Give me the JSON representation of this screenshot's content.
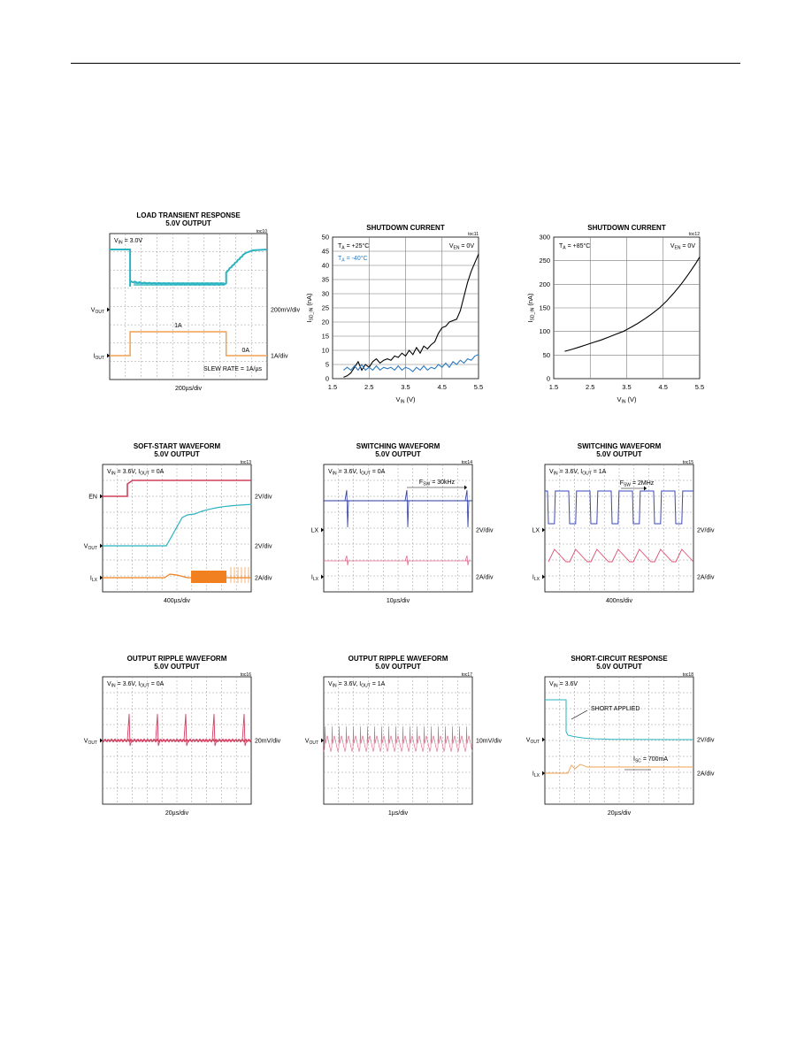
{
  "charts": [
    {
      "id": "c1",
      "kind": "scope",
      "title": [
        "LOAD TRANSIENT RESPONSE",
        "5.0V OUTPUT"
      ],
      "toc": "toc10",
      "condition": [
        [
          "V",
          "IN",
          " = 3.0V"
        ]
      ],
      "left_labels": [
        {
          "parts": [
            [
              "V",
              "OUT",
              ""
            ]
          ]
        },
        {
          "parts": [
            [
              "I",
              "OUT",
              ""
            ]
          ]
        }
      ],
      "right_labels": [
        "200mV/div",
        "1A/div"
      ],
      "annotations": [
        "1A",
        "0A",
        "SLEW RATE = 1A/µs"
      ],
      "time_div": "200µs/div",
      "colors": {
        "vout": "#2bb3c0",
        "iout": "#f0a050"
      }
    },
    {
      "id": "c2",
      "kind": "xy",
      "title": [
        "SHUTDOWN CURRENT"
      ],
      "toc": "toc11",
      "xlabel": [
        [
          "V",
          "IN",
          " (V)"
        ]
      ],
      "ylabel": [
        [
          "I",
          "SD_IN",
          " (nA)"
        ]
      ],
      "legend": [
        {
          "parts": [
            [
              "T",
              "A",
              " = +25°C"
            ]
          ],
          "color": "#000000"
        },
        {
          "parts": [
            [
              "T",
              "A",
              " = -40°C"
            ]
          ],
          "color": "#2a7ac0"
        }
      ],
      "corner_label": [
        [
          "V",
          "EN",
          " = 0V"
        ]
      ],
      "chart_data": {
        "type": "line",
        "xlim": [
          1.5,
          5.5
        ],
        "ylim": [
          0,
          50
        ],
        "x_ticks": [
          1.5,
          2.5,
          3.5,
          4.5,
          5.5
        ],
        "y_ticks": [
          0,
          5,
          10,
          15,
          20,
          25,
          30,
          35,
          40,
          45,
          50
        ],
        "x_tick_labels": [
          "1.5",
          "2.5",
          "3.5",
          "4.5",
          "5.5"
        ],
        "y_tick_labels": [
          "0",
          "5",
          "10",
          "15",
          "20",
          "25",
          "30",
          "35",
          "40",
          "45",
          "50"
        ],
        "series": [
          {
            "name": "TA = +25°C",
            "color": "#000000",
            "x": [
              1.8,
              1.9,
              2.0,
              2.1,
              2.2,
              2.3,
              2.4,
              2.5,
              2.6,
              2.7,
              2.8,
              2.9,
              3.0,
              3.1,
              3.2,
              3.3,
              3.4,
              3.5,
              3.6,
              3.7,
              3.8,
              3.9,
              4.0,
              4.1,
              4.2,
              4.3,
              4.4,
              4.5,
              4.6,
              4.7,
              4.8,
              4.9,
              5.0,
              5.1,
              5.2,
              5.3,
              5.4,
              5.5
            ],
            "y": [
              0.5,
              1.0,
              2.0,
              4.0,
              6.0,
              3.0,
              5.0,
              4.0,
              6.0,
              7.0,
              5.5,
              6.5,
              7.0,
              6.5,
              8.0,
              7.5,
              9.0,
              8.0,
              10.0,
              8.5,
              11.0,
              9.0,
              11.5,
              10.5,
              12.0,
              13.0,
              16.0,
              18.0,
              18.5,
              20.0,
              20.5,
              21.0,
              24.0,
              29.0,
              34.0,
              38.0,
              41.0,
              44.0
            ]
          },
          {
            "name": "TA = -40°C",
            "color": "#2a7ac0",
            "x": [
              1.8,
              1.9,
              2.0,
              2.1,
              2.2,
              2.3,
              2.4,
              2.5,
              2.6,
              2.7,
              2.8,
              2.9,
              3.0,
              3.1,
              3.2,
              3.3,
              3.4,
              3.5,
              3.6,
              3.7,
              3.8,
              3.9,
              4.0,
              4.1,
              4.2,
              4.3,
              4.4,
              4.5,
              4.6,
              4.7,
              4.8,
              4.9,
              5.0,
              5.1,
              5.2,
              5.3,
              5.4,
              5.5
            ],
            "y": [
              3.0,
              4.0,
              3.0,
              4.5,
              3.0,
              5.0,
              3.0,
              4.0,
              3.0,
              4.5,
              3.0,
              4.0,
              3.5,
              4.0,
              3.0,
              4.5,
              3.0,
              4.0,
              3.5,
              2.5,
              4.0,
              3.0,
              4.5,
              3.0,
              4.0,
              3.5,
              5.0,
              4.0,
              5.5,
              4.0,
              6.0,
              5.0,
              6.5,
              5.5,
              7.0,
              6.5,
              8.0,
              8.5
            ]
          }
        ]
      }
    },
    {
      "id": "c3",
      "kind": "xy",
      "title": [
        "SHUTDOWN CURRENT"
      ],
      "toc": "toc12",
      "xlabel": [
        [
          "V",
          "IN",
          " (V)"
        ]
      ],
      "ylabel": [
        [
          "I",
          "SD_IN",
          " (nA)"
        ]
      ],
      "legend": [
        {
          "parts": [
            [
              "T",
              "A",
              " = +85°C"
            ]
          ],
          "color": "#000000"
        }
      ],
      "corner_label": [
        [
          "V",
          "EN",
          " = 0V"
        ]
      ],
      "chart_data": {
        "type": "line",
        "xlim": [
          1.5,
          5.5
        ],
        "ylim": [
          0,
          300
        ],
        "x_ticks": [
          1.5,
          2.5,
          3.5,
          4.5,
          5.5
        ],
        "y_ticks": [
          0,
          50,
          100,
          150,
          200,
          250,
          300
        ],
        "x_tick_labels": [
          "1.5",
          "2.5",
          "3.5",
          "4.5",
          "5.5"
        ],
        "y_tick_labels": [
          "0",
          "50",
          "100",
          "150",
          "200",
          "250",
          "300"
        ],
        "series": [
          {
            "name": "TA = +85°C",
            "color": "#000000",
            "x": [
              1.8,
              2.0,
              2.2,
              2.4,
              2.6,
              2.8,
              3.0,
              3.2,
              3.4,
              3.6,
              3.8,
              4.0,
              4.2,
              4.4,
              4.6,
              4.8,
              5.0,
              5.2,
              5.4,
              5.5
            ],
            "y": [
              58,
              62,
              67,
              72,
              77,
              82,
              88,
              94,
              100,
              108,
              117,
              127,
              138,
              150,
              165,
              182,
              201,
              222,
              245,
              258
            ]
          }
        ]
      }
    },
    {
      "id": "c4",
      "kind": "scope",
      "title": [
        "SOFT-START WAVEFORM",
        "5.0V OUTPUT"
      ],
      "toc": "toc13",
      "condition": [
        [
          "V",
          "IN",
          " = 3.6V, "
        ],
        [
          "I",
          "OUT",
          " = 0A"
        ]
      ],
      "left_labels": [
        {
          "parts": [
            [
              "EN",
              "",
              ""
            ]
          ]
        },
        {
          "parts": [
            [
              "V",
              "OUT",
              ""
            ]
          ]
        },
        {
          "parts": [
            [
              "I",
              "LX",
              ""
            ]
          ]
        }
      ],
      "right_labels": [
        "2V/div",
        "2V/div",
        "2A/div"
      ],
      "annotations": [],
      "time_div": "400µs/div",
      "colors": {
        "en": "#d0405a",
        "vout": "#2bb3c0",
        "ilx": "#f08020"
      }
    },
    {
      "id": "c5",
      "kind": "scope",
      "title": [
        "SWITCHING WAVEFORM",
        "5.0V OUTPUT"
      ],
      "toc": "toc14",
      "condition": [
        [
          "V",
          "IN",
          " = 3.6V, "
        ],
        [
          "I",
          "OUT",
          " = 0A"
        ]
      ],
      "left_labels": [
        {
          "parts": [
            [
              "LX",
              "",
              ""
            ]
          ]
        },
        {
          "parts": [
            [
              "I",
              "LX",
              ""
            ]
          ]
        }
      ],
      "right_labels": [
        "2V/div",
        "2A/div"
      ],
      "annotations": [
        [
          "F",
          "SW",
          " = 30kHz"
        ]
      ],
      "time_div": "10µs/div",
      "colors": {
        "lx": "#2a3aa0",
        "ilx": "#e07090"
      }
    },
    {
      "id": "c6",
      "kind": "scope",
      "title": [
        "SWITCHING WAVEFORM",
        "5.0V OUTPUT"
      ],
      "toc": "toc15",
      "condition": [
        [
          "V",
          "IN",
          " = 3.6V, "
        ],
        [
          "I",
          "OUT",
          " = 1A"
        ]
      ],
      "left_labels": [
        {
          "parts": [
            [
              "LX",
              "",
              ""
            ]
          ]
        },
        {
          "parts": [
            [
              "I",
              "LX",
              ""
            ]
          ]
        }
      ],
      "right_labels": [
        "2V/div",
        "2A/div"
      ],
      "annotations": [
        [
          "F",
          "SW",
          " = 2MHz"
        ]
      ],
      "time_div": "400ns/div",
      "colors": {
        "lx": "#3a4ac0",
        "ilx": "#e05070"
      }
    },
    {
      "id": "c7",
      "kind": "scope",
      "title": [
        "OUTPUT RIPPLE WAVEFORM",
        "5.0V OUTPUT"
      ],
      "toc": "toc16",
      "condition": [
        [
          "V",
          "IN",
          " = 3.6V, "
        ],
        [
          "I",
          "OUT",
          " = 0A"
        ]
      ],
      "left_labels": [
        {
          "parts": [
            [
              "V",
              "OUT",
              ""
            ]
          ]
        }
      ],
      "right_labels": [
        "20mV/div"
      ],
      "annotations": [],
      "time_div": "20µs/div",
      "colors": {
        "vout": "#d04060"
      }
    },
    {
      "id": "c8",
      "kind": "scope",
      "title": [
        "OUTPUT RIPPLE WAVEFORM",
        "5.0V OUTPUT"
      ],
      "toc": "toc17",
      "condition": [
        [
          "V",
          "IN",
          " = 3.6V, "
        ],
        [
          "I",
          "OUT",
          " = 1A"
        ]
      ],
      "left_labels": [
        {
          "parts": [
            [
              "V",
              "OUT",
              ""
            ]
          ]
        }
      ],
      "right_labels": [
        "10mV/div"
      ],
      "annotations": [],
      "time_div": "1µs/div",
      "colors": {
        "vout": "#e06080"
      }
    },
    {
      "id": "c9",
      "kind": "scope",
      "title": [
        "SHORT-CIRCUIT RESPONSE",
        "5.0V OUTPUT"
      ],
      "toc": "toc18",
      "condition": [
        [
          "V",
          "IN",
          " = 3.6V"
        ]
      ],
      "left_labels": [
        {
          "parts": [
            [
              "V",
              "OUT",
              ""
            ]
          ]
        },
        {
          "parts": [
            [
              "I",
              "LX",
              ""
            ]
          ]
        }
      ],
      "right_labels": [
        "2V/div",
        "2A/div"
      ],
      "annotations": [
        "SHORT APPLIED",
        [
          "I",
          "SC",
          " = 700mA"
        ]
      ],
      "time_div": "20µs/div",
      "colors": {
        "vout": "#2bb3c0",
        "ilx": "#f0a050"
      }
    }
  ]
}
